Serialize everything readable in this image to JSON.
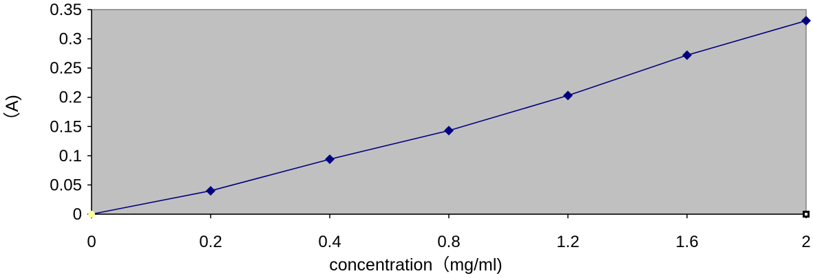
{
  "chart_data": {
    "type": "line",
    "title": "",
    "xlabel": "concentration（mg/ml)",
    "ylabel": "（A)",
    "categories": [
      "0",
      "0.2",
      "0.4",
      "0.8",
      "1.2",
      "1.6",
      "2"
    ],
    "series": [
      {
        "values": [
          0,
          0.04,
          0.094,
          0.143,
          0.203,
          0.272,
          0.331
        ]
      }
    ],
    "yticks": [
      "0",
      "0.05",
      "0.1",
      "0.15",
      "0.2",
      "0.25",
      "0.3",
      "0.35"
    ],
    "ylim": [
      0,
      0.35
    ],
    "grid": false,
    "legend": "none",
    "colors": {
      "plot_background": "#c0c0c0",
      "line": "#000080",
      "marker": "#000080",
      "origin_marker": "#ffff99"
    }
  }
}
